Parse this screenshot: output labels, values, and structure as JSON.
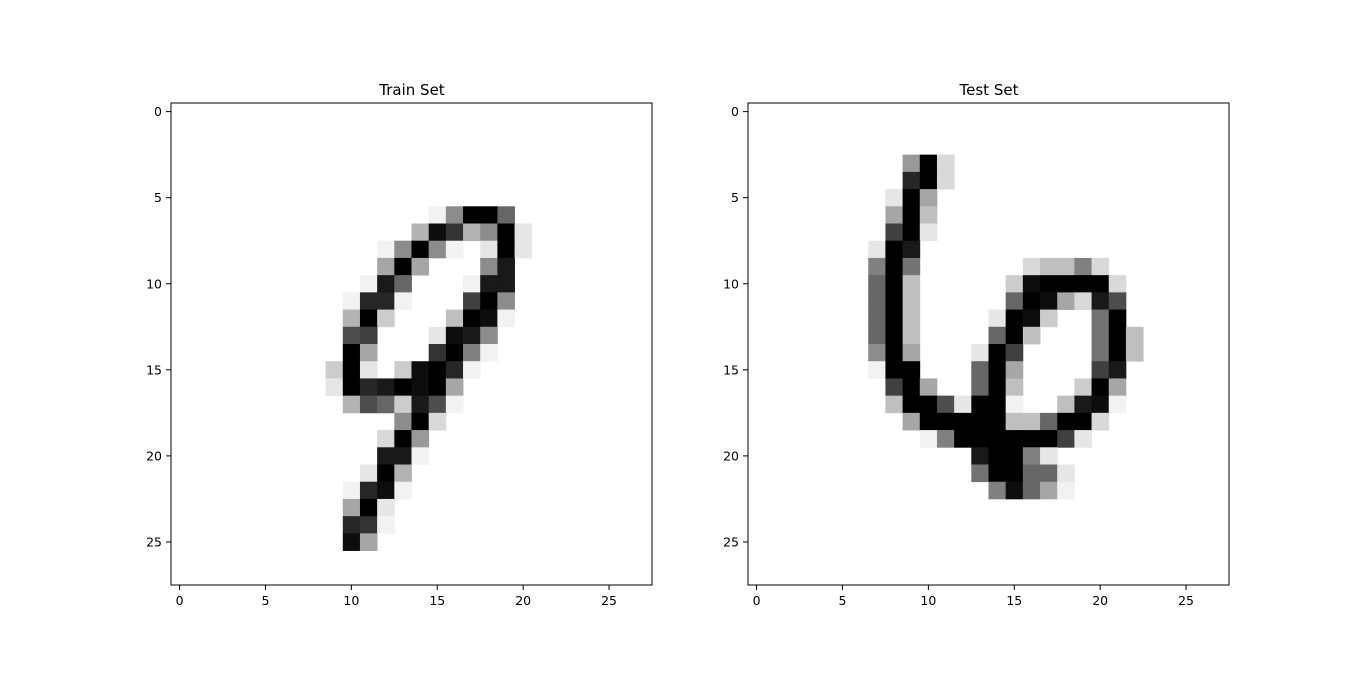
{
  "chart_data": [
    {
      "type": "heatmap",
      "title": "Train Set",
      "colormap": "gray_r",
      "xlabel": "",
      "ylabel": "",
      "xlim": [
        -0.5,
        27.5
      ],
      "ylim": [
        27.5,
        -0.5
      ],
      "xticks": [
        0,
        5,
        10,
        15,
        20,
        25
      ],
      "yticks": [
        0,
        5,
        10,
        15,
        20,
        25
      ],
      "grid": false,
      "note_intensity_scale": "0 = white, 1 = black",
      "pixels": [
        [
          6,
          15,
          0.05
        ],
        [
          6,
          16,
          0.45
        ],
        [
          6,
          17,
          1.0
        ],
        [
          6,
          18,
          1.0
        ],
        [
          6,
          19,
          0.6
        ],
        [
          7,
          14,
          0.3
        ],
        [
          7,
          15,
          0.95
        ],
        [
          7,
          16,
          0.8
        ],
        [
          7,
          17,
          0.3
        ],
        [
          7,
          18,
          0.45
        ],
        [
          7,
          19,
          1.0
        ],
        [
          7,
          20,
          0.1
        ],
        [
          8,
          12,
          0.05
        ],
        [
          8,
          13,
          0.45
        ],
        [
          8,
          14,
          1.0
        ],
        [
          8,
          15,
          0.45
        ],
        [
          8,
          16,
          0.05
        ],
        [
          8,
          18,
          0.1
        ],
        [
          8,
          19,
          1.0
        ],
        [
          8,
          20,
          0.1
        ],
        [
          9,
          12,
          0.35
        ],
        [
          9,
          13,
          1.0
        ],
        [
          9,
          14,
          0.35
        ],
        [
          9,
          18,
          0.45
        ],
        [
          9,
          19,
          0.9
        ],
        [
          10,
          11,
          0.05
        ],
        [
          10,
          12,
          0.9
        ],
        [
          10,
          13,
          0.6
        ],
        [
          10,
          17,
          0.05
        ],
        [
          10,
          18,
          0.9
        ],
        [
          10,
          19,
          0.9
        ],
        [
          11,
          10,
          0.05
        ],
        [
          11,
          11,
          0.85
        ],
        [
          11,
          12,
          0.85
        ],
        [
          11,
          13,
          0.05
        ],
        [
          11,
          17,
          0.75
        ],
        [
          11,
          18,
          1.0
        ],
        [
          11,
          19,
          0.45
        ],
        [
          12,
          10,
          0.3
        ],
        [
          12,
          11,
          1.0
        ],
        [
          12,
          12,
          0.2
        ],
        [
          12,
          16,
          0.25
        ],
        [
          12,
          17,
          1.0
        ],
        [
          12,
          18,
          0.95
        ],
        [
          12,
          19,
          0.05
        ],
        [
          13,
          10,
          0.7
        ],
        [
          13,
          11,
          0.75
        ],
        [
          13,
          15,
          0.1
        ],
        [
          13,
          16,
          0.95
        ],
        [
          13,
          17,
          0.9
        ],
        [
          13,
          18,
          0.45
        ],
        [
          14,
          10,
          1.0
        ],
        [
          14,
          11,
          0.35
        ],
        [
          14,
          15,
          0.8
        ],
        [
          14,
          16,
          1.0
        ],
        [
          14,
          17,
          0.5
        ],
        [
          14,
          18,
          0.05
        ],
        [
          15,
          9,
          0.2
        ],
        [
          15,
          10,
          1.0
        ],
        [
          15,
          11,
          0.1
        ],
        [
          15,
          13,
          0.2
        ],
        [
          15,
          14,
          0.95
        ],
        [
          15,
          15,
          1.0
        ],
        [
          15,
          16,
          0.85
        ],
        [
          15,
          17,
          0.05
        ],
        [
          16,
          9,
          0.1
        ],
        [
          16,
          10,
          1.0
        ],
        [
          16,
          11,
          0.85
        ],
        [
          16,
          12,
          0.9
        ],
        [
          16,
          13,
          1.0
        ],
        [
          16,
          14,
          0.95
        ],
        [
          16,
          15,
          1.0
        ],
        [
          16,
          16,
          0.35
        ],
        [
          17,
          10,
          0.3
        ],
        [
          17,
          11,
          0.7
        ],
        [
          17,
          12,
          0.6
        ],
        [
          17,
          13,
          0.2
        ],
        [
          17,
          14,
          0.9
        ],
        [
          17,
          15,
          0.7
        ],
        [
          17,
          16,
          0.05
        ],
        [
          18,
          13,
          0.45
        ],
        [
          18,
          14,
          1.0
        ],
        [
          18,
          15,
          0.15
        ],
        [
          19,
          12,
          0.15
        ],
        [
          19,
          13,
          1.0
        ],
        [
          19,
          14,
          0.4
        ],
        [
          20,
          12,
          0.9
        ],
        [
          20,
          13,
          0.9
        ],
        [
          20,
          14,
          0.05
        ],
        [
          21,
          11,
          0.1
        ],
        [
          21,
          12,
          1.0
        ],
        [
          21,
          13,
          0.3
        ],
        [
          22,
          10,
          0.05
        ],
        [
          22,
          11,
          0.85
        ],
        [
          22,
          12,
          0.95
        ],
        [
          22,
          13,
          0.05
        ],
        [
          23,
          10,
          0.35
        ],
        [
          23,
          11,
          1.0
        ],
        [
          23,
          12,
          0.1
        ],
        [
          24,
          10,
          0.85
        ],
        [
          24,
          11,
          0.8
        ],
        [
          24,
          12,
          0.05
        ],
        [
          25,
          10,
          0.95
        ],
        [
          25,
          11,
          0.35
        ]
      ]
    },
    {
      "type": "heatmap",
      "title": "Test Set",
      "colormap": "gray_r",
      "xlabel": "",
      "ylabel": "",
      "xlim": [
        -0.5,
        27.5
      ],
      "ylim": [
        27.5,
        -0.5
      ],
      "xticks": [
        0,
        5,
        10,
        15,
        20,
        25
      ],
      "yticks": [
        0,
        5,
        10,
        15,
        20,
        25
      ],
      "grid": false,
      "note_intensity_scale": "0 = white, 1 = black",
      "pixels": [
        [
          3,
          9,
          0.4
        ],
        [
          3,
          10,
          1.0
        ],
        [
          3,
          11,
          0.15
        ],
        [
          4,
          9,
          0.85
        ],
        [
          4,
          10,
          1.0
        ],
        [
          4,
          11,
          0.15
        ],
        [
          5,
          8,
          0.1
        ],
        [
          5,
          9,
          1.0
        ],
        [
          5,
          10,
          0.35
        ],
        [
          6,
          8,
          0.35
        ],
        [
          6,
          9,
          1.0
        ],
        [
          6,
          10,
          0.25
        ],
        [
          7,
          8,
          0.75
        ],
        [
          7,
          9,
          1.0
        ],
        [
          7,
          10,
          0.1
        ],
        [
          8,
          7,
          0.1
        ],
        [
          8,
          8,
          1.0
        ],
        [
          8,
          9,
          0.9
        ],
        [
          9,
          7,
          0.5
        ],
        [
          9,
          8,
          1.0
        ],
        [
          9,
          9,
          0.55
        ],
        [
          9,
          16,
          0.15
        ],
        [
          9,
          17,
          0.25
        ],
        [
          9,
          18,
          0.25
        ],
        [
          9,
          19,
          0.5
        ],
        [
          9,
          20,
          0.15
        ],
        [
          10,
          7,
          0.6
        ],
        [
          10,
          8,
          1.0
        ],
        [
          10,
          9,
          0.25
        ],
        [
          10,
          15,
          0.2
        ],
        [
          10,
          16,
          0.95
        ],
        [
          10,
          17,
          1.0
        ],
        [
          10,
          18,
          1.0
        ],
        [
          10,
          19,
          1.0
        ],
        [
          10,
          20,
          1.0
        ],
        [
          10,
          21,
          0.15
        ],
        [
          11,
          7,
          0.6
        ],
        [
          11,
          8,
          1.0
        ],
        [
          11,
          9,
          0.25
        ],
        [
          11,
          15,
          0.6
        ],
        [
          11,
          16,
          1.0
        ],
        [
          11,
          17,
          0.95
        ],
        [
          11,
          18,
          0.35
        ],
        [
          11,
          19,
          0.15
        ],
        [
          11,
          20,
          0.9
        ],
        [
          11,
          21,
          0.7
        ],
        [
          12,
          7,
          0.6
        ],
        [
          12,
          8,
          1.0
        ],
        [
          12,
          9,
          0.25
        ],
        [
          12,
          14,
          0.1
        ],
        [
          12,
          15,
          1.0
        ],
        [
          12,
          16,
          0.95
        ],
        [
          12,
          17,
          0.2
        ],
        [
          12,
          20,
          0.55
        ],
        [
          12,
          21,
          1.0
        ],
        [
          13,
          7,
          0.6
        ],
        [
          13,
          8,
          1.0
        ],
        [
          13,
          9,
          0.25
        ],
        [
          13,
          14,
          0.6
        ],
        [
          13,
          15,
          1.0
        ],
        [
          13,
          16,
          0.25
        ],
        [
          13,
          20,
          0.55
        ],
        [
          13,
          21,
          1.0
        ],
        [
          13,
          22,
          0.25
        ],
        [
          14,
          7,
          0.45
        ],
        [
          14,
          8,
          1.0
        ],
        [
          14,
          9,
          0.35
        ],
        [
          14,
          13,
          0.1
        ],
        [
          14,
          14,
          1.0
        ],
        [
          14,
          15,
          0.75
        ],
        [
          14,
          20,
          0.55
        ],
        [
          14,
          21,
          1.0
        ],
        [
          14,
          22,
          0.25
        ],
        [
          15,
          7,
          0.05
        ],
        [
          15,
          8,
          1.0
        ],
        [
          15,
          9,
          1.0
        ],
        [
          15,
          13,
          0.6
        ],
        [
          15,
          14,
          1.0
        ],
        [
          15,
          15,
          0.35
        ],
        [
          15,
          20,
          0.75
        ],
        [
          15,
          21,
          0.9
        ],
        [
          16,
          8,
          0.75
        ],
        [
          16,
          9,
          1.0
        ],
        [
          16,
          10,
          0.35
        ],
        [
          16,
          13,
          0.6
        ],
        [
          16,
          14,
          1.0
        ],
        [
          16,
          15,
          0.25
        ],
        [
          16,
          19,
          0.2
        ],
        [
          16,
          20,
          1.0
        ],
        [
          16,
          21,
          0.35
        ],
        [
          17,
          8,
          0.25
        ],
        [
          17,
          9,
          1.0
        ],
        [
          17,
          10,
          1.0
        ],
        [
          17,
          11,
          0.7
        ],
        [
          17,
          12,
          0.1
        ],
        [
          17,
          13,
          1.0
        ],
        [
          17,
          14,
          1.0
        ],
        [
          17,
          15,
          0.05
        ],
        [
          17,
          18,
          0.25
        ],
        [
          17,
          19,
          0.9
        ],
        [
          17,
          20,
          0.95
        ],
        [
          17,
          21,
          0.05
        ],
        [
          18,
          9,
          0.35
        ],
        [
          18,
          10,
          1.0
        ],
        [
          18,
          11,
          1.0
        ],
        [
          18,
          12,
          1.0
        ],
        [
          18,
          13,
          1.0
        ],
        [
          18,
          14,
          1.0
        ],
        [
          18,
          15,
          0.25
        ],
        [
          18,
          16,
          0.25
        ],
        [
          18,
          17,
          0.6
        ],
        [
          18,
          18,
          1.0
        ],
        [
          18,
          19,
          1.0
        ],
        [
          18,
          20,
          0.15
        ],
        [
          19,
          10,
          0.05
        ],
        [
          19,
          11,
          0.5
        ],
        [
          19,
          12,
          1.0
        ],
        [
          19,
          13,
          1.0
        ],
        [
          19,
          14,
          1.0
        ],
        [
          19,
          15,
          1.0
        ],
        [
          19,
          16,
          1.0
        ],
        [
          19,
          17,
          1.0
        ],
        [
          19,
          18,
          0.75
        ],
        [
          19,
          19,
          0.1
        ],
        [
          20,
          13,
          0.9
        ],
        [
          20,
          14,
          1.0
        ],
        [
          20,
          15,
          1.0
        ],
        [
          20,
          16,
          0.5
        ],
        [
          20,
          17,
          0.1
        ],
        [
          21,
          13,
          0.55
        ],
        [
          21,
          14,
          1.0
        ],
        [
          21,
          15,
          1.0
        ],
        [
          21,
          16,
          0.6
        ],
        [
          21,
          17,
          0.6
        ],
        [
          21,
          18,
          0.1
        ],
        [
          22,
          14,
          0.5
        ],
        [
          22,
          15,
          0.95
        ],
        [
          22,
          16,
          0.6
        ],
        [
          22,
          17,
          0.35
        ],
        [
          22,
          18,
          0.05
        ]
      ]
    }
  ]
}
